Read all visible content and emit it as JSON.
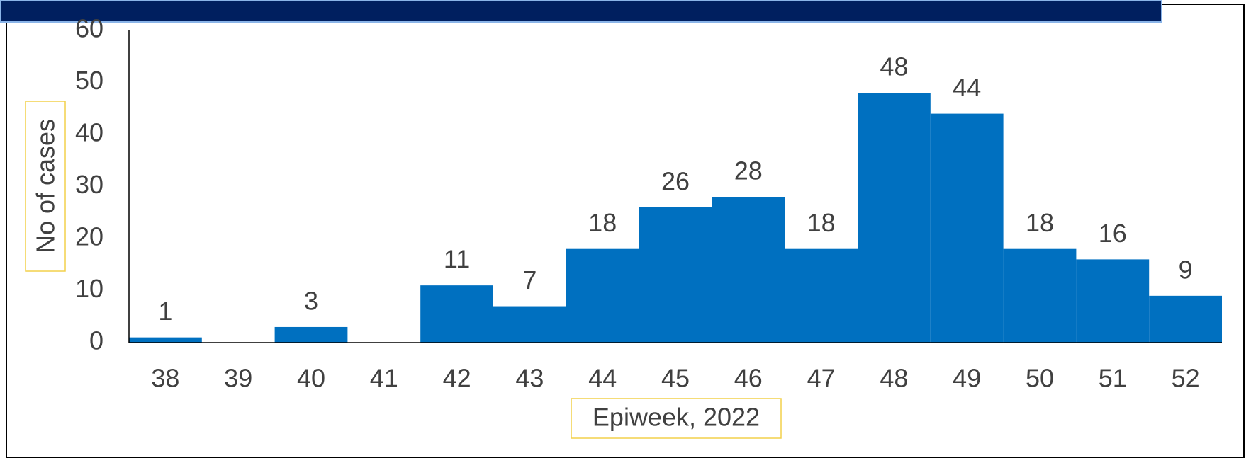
{
  "chart_data": {
    "type": "bar",
    "categories": [
      "38",
      "39",
      "40",
      "41",
      "42",
      "43",
      "44",
      "45",
      "46",
      "47",
      "48",
      "49",
      "50",
      "51",
      "52"
    ],
    "values": [
      1,
      0,
      3,
      0,
      11,
      7,
      18,
      26,
      28,
      18,
      48,
      44,
      18,
      16,
      9
    ],
    "color": "#0070c0",
    "x_label": "Epiweek, 2022",
    "y_label": "No of cases",
    "ylim": [
      0,
      60
    ],
    "yticks": [
      0,
      10,
      20,
      30,
      40,
      50,
      60
    ]
  }
}
